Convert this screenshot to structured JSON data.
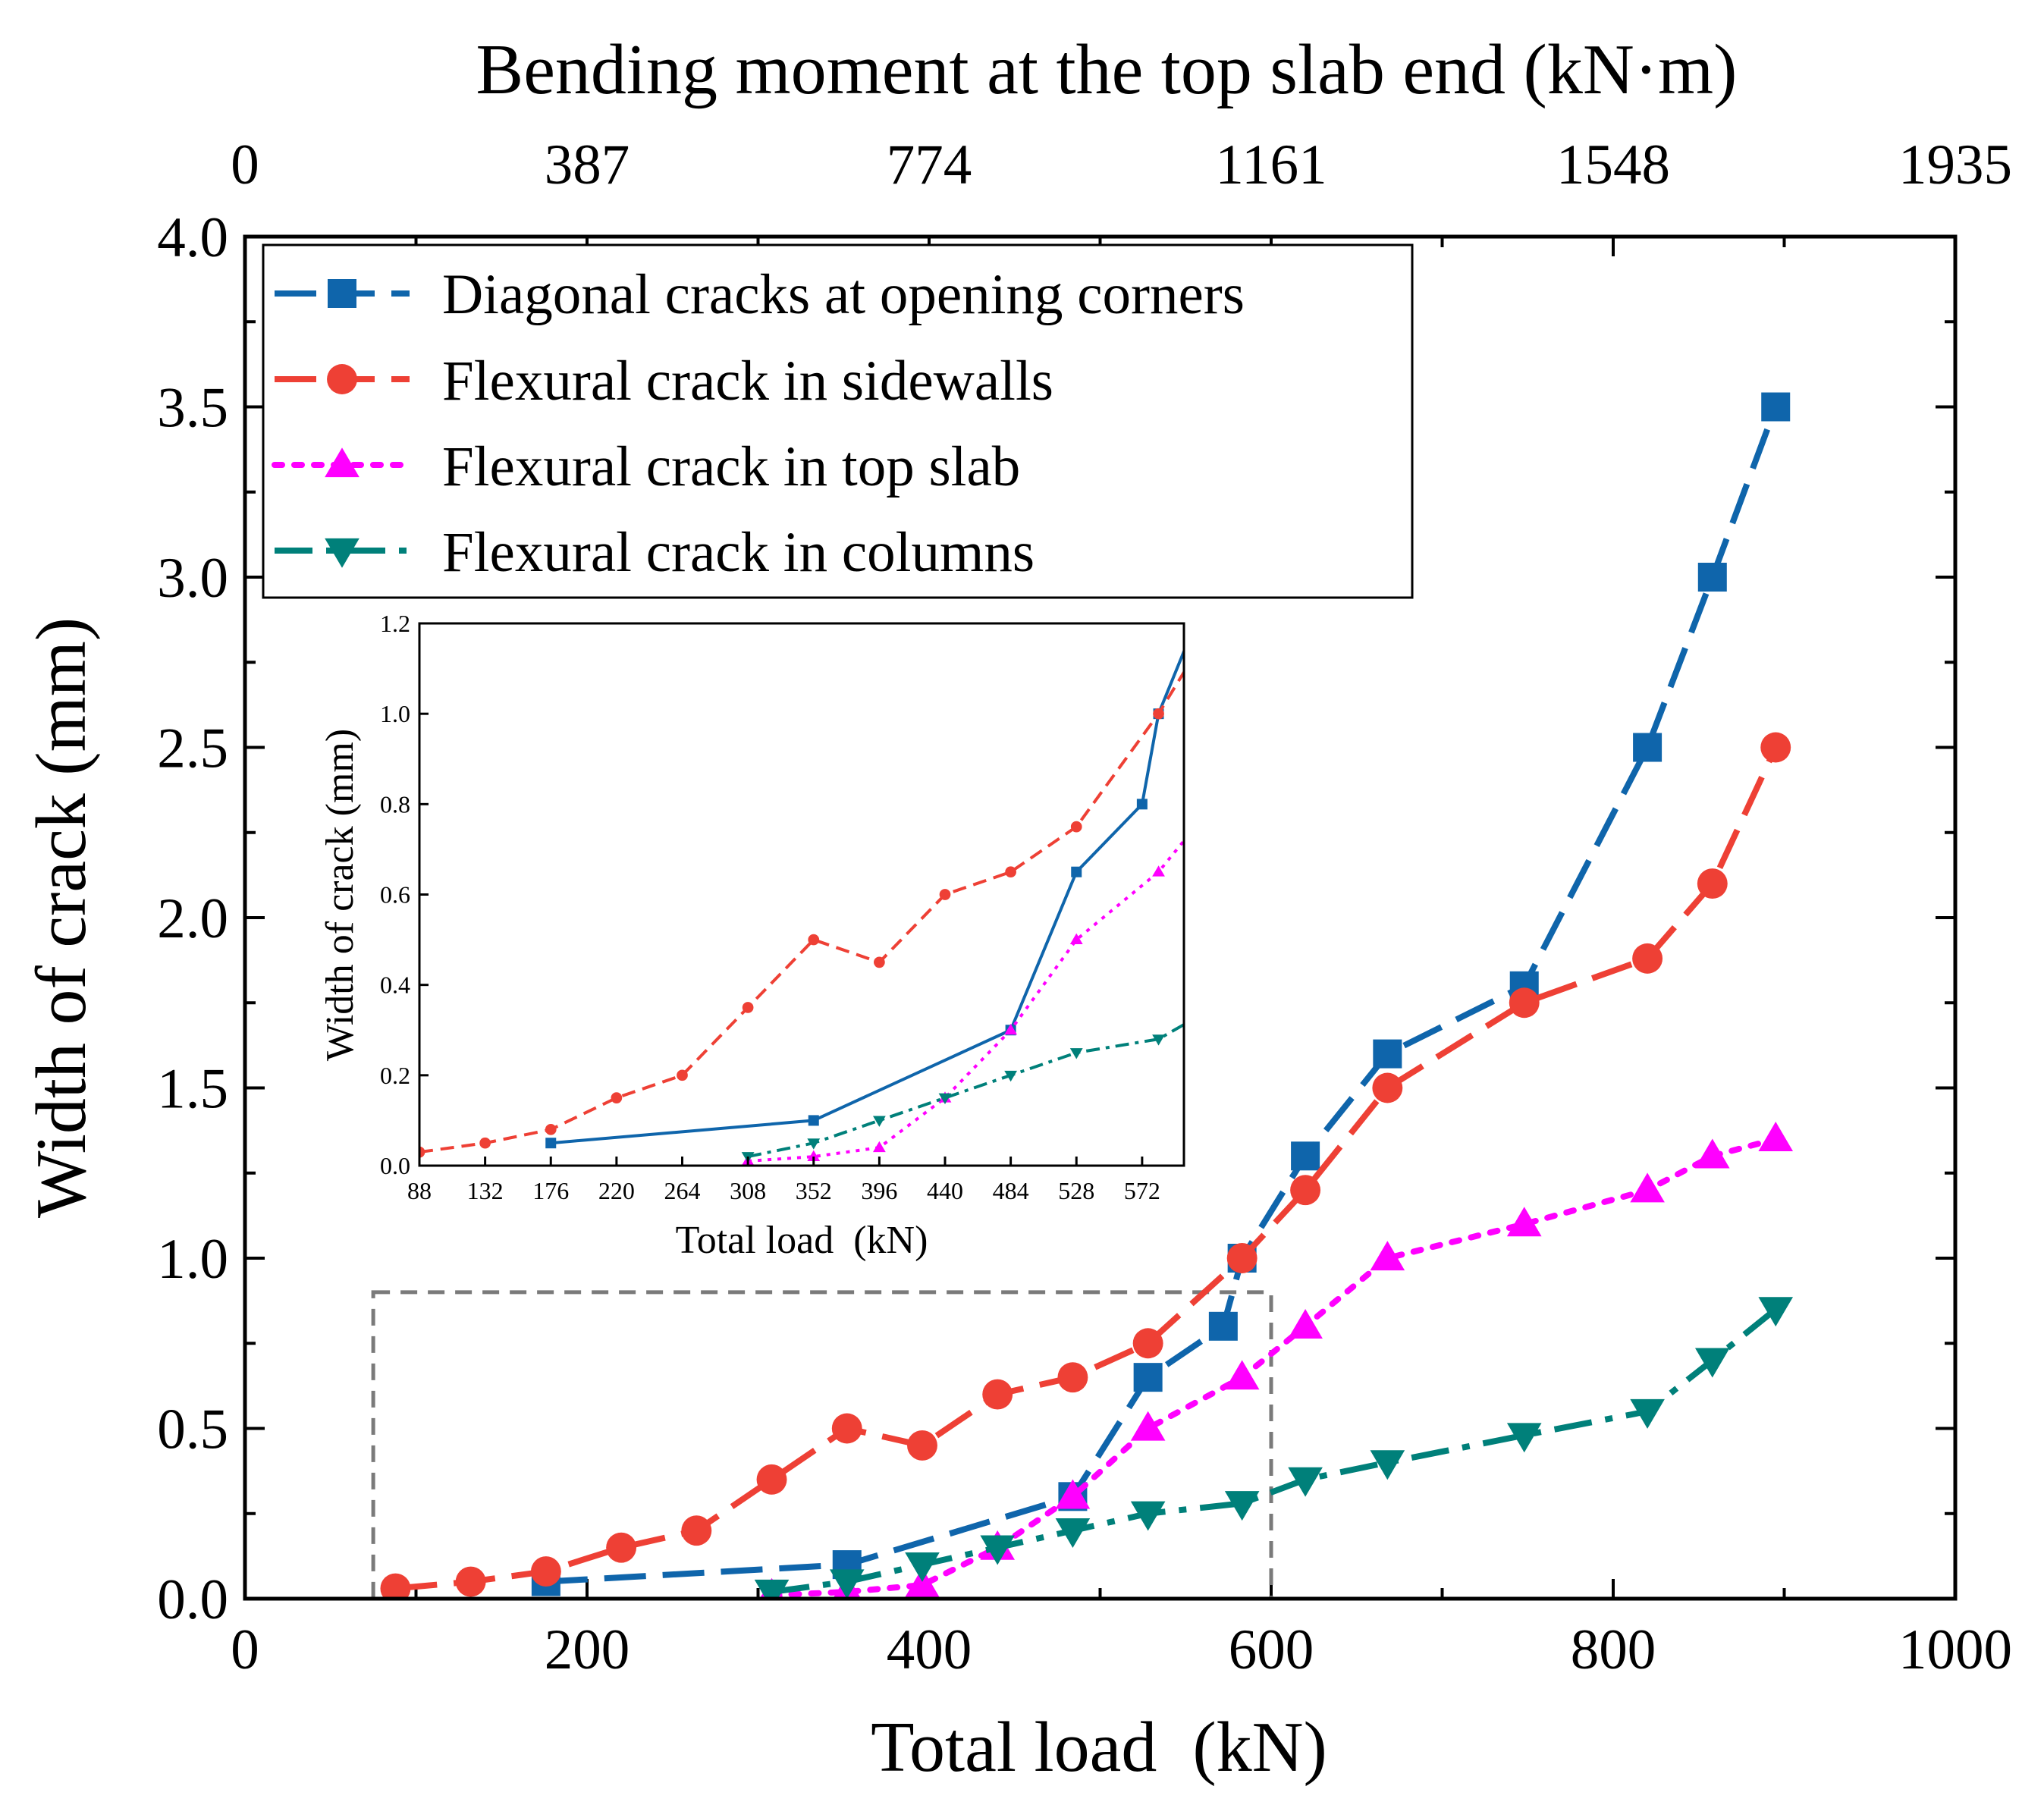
{
  "chart_data": {
    "type": "line",
    "title": "",
    "xlabel": "Total load  (kN)",
    "ylabel": "Width of crack (mm)",
    "top_axis_label": "Bending moment at the top slab end (kN·m)",
    "xlim": [
      0,
      1000
    ],
    "ylim": [
      0,
      4
    ],
    "x_ticks": [
      "0",
      "200",
      "400",
      "600",
      "800",
      "1000"
    ],
    "y_ticks": [
      "0.0",
      "0.5",
      "1.0",
      "1.5",
      "2.0",
      "2.5",
      "3.0",
      "3.5",
      "4.0"
    ],
    "top_ticks": [
      "0",
      "387",
      "774",
      "1161",
      "1548",
      "1935"
    ],
    "legend_position": "top-left",
    "series": [
      {
        "name": "Diagonal cracks at opening corners",
        "color": "#0f65ab",
        "marker": "square",
        "line": "dash",
        "x": [
          176,
          352,
          484,
          528,
          572,
          583,
          620,
          668,
          748,
          820,
          858,
          895
        ],
        "y": [
          0.05,
          0.1,
          0.3,
          0.65,
          0.8,
          1.0,
          1.3,
          1.6,
          1.8,
          2.5,
          3.0,
          3.5
        ]
      },
      {
        "name": "Flexural crack in sidewalls",
        "color": "#ee4035",
        "marker": "circle",
        "line": "dash",
        "x": [
          88,
          132,
          176,
          220,
          264,
          308,
          352,
          396,
          440,
          484,
          528,
          583,
          620,
          668,
          748,
          820,
          858,
          895
        ],
        "y": [
          0.03,
          0.05,
          0.08,
          0.15,
          0.2,
          0.35,
          0.5,
          0.45,
          0.6,
          0.65,
          0.75,
          1.0,
          1.2,
          1.5,
          1.75,
          1.88,
          2.1,
          2.5
        ]
      },
      {
        "name": "Flexural crack in top slab",
        "color": "#ff00ff",
        "marker": "triangle-up",
        "line": "dot",
        "x": [
          308,
          352,
          396,
          440,
          484,
          528,
          583,
          620,
          668,
          748,
          820,
          858,
          895
        ],
        "y": [
          0.01,
          0.02,
          0.04,
          0.15,
          0.3,
          0.5,
          0.65,
          0.8,
          1.0,
          1.1,
          1.2,
          1.3,
          1.35
        ]
      },
      {
        "name": "Flexural crack in columns",
        "color": "#00807a",
        "marker": "triangle-down",
        "line": "dashdot",
        "x": [
          308,
          352,
          396,
          440,
          484,
          528,
          583,
          620,
          668,
          748,
          820,
          858,
          895
        ],
        "y": [
          0.02,
          0.05,
          0.1,
          0.15,
          0.2,
          0.25,
          0.28,
          0.35,
          0.4,
          0.48,
          0.55,
          0.7,
          0.85
        ]
      }
    ],
    "zoom_region": {
      "xlim": [
        75,
        600
      ],
      "ylim": [
        0,
        0.9
      ]
    },
    "inset": {
      "xlabel": "Total load  (kN)",
      "ylabel": "Width of crack (mm)",
      "xlim": [
        88,
        600
      ],
      "ylim": [
        0,
        1.2
      ],
      "x_ticks": [
        "88",
        "132",
        "176",
        "220",
        "264",
        "308",
        "352",
        "396",
        "440",
        "484",
        "528",
        "572"
      ],
      "x_tick_values": [
        88,
        132,
        176,
        220,
        264,
        308,
        352,
        396,
        440,
        484,
        528,
        572
      ],
      "y_ticks": [
        "0.0",
        "0.2",
        "0.4",
        "0.6",
        "0.8",
        "1.0",
        "1.2"
      ]
    }
  }
}
